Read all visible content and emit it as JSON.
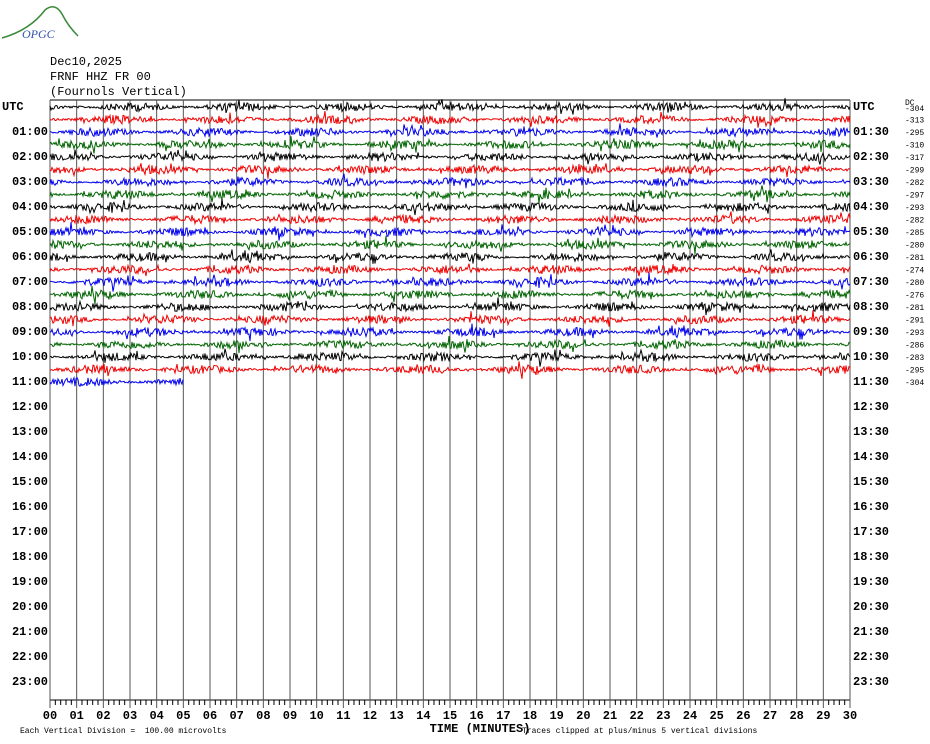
{
  "logo": "OPGC",
  "header": {
    "date": "Dec10,2025",
    "station": "FRNF HHZ FR 00",
    "location": "(Fournols Vertical)"
  },
  "time_labels": {
    "left": [
      "UTC",
      "01:00",
      "02:00",
      "03:00",
      "04:00",
      "05:00",
      "06:00",
      "07:00",
      "08:00",
      "09:00",
      "10:00",
      "11:00",
      "12:00",
      "13:00",
      "14:00",
      "15:00",
      "16:00",
      "17:00",
      "18:00",
      "19:00",
      "20:00",
      "21:00",
      "22:00",
      "23:00"
    ],
    "right": [
      "UTC",
      "01:30",
      "02:30",
      "03:30",
      "04:30",
      "05:30",
      "06:30",
      "07:30",
      "08:30",
      "09:30",
      "10:30",
      "11:30",
      "12:30",
      "13:30",
      "14:30",
      "15:30",
      "16:30",
      "17:30",
      "18:30",
      "19:30",
      "20:30",
      "21:30",
      "22:30",
      "23:30"
    ]
  },
  "offsets": {
    "label": "DC",
    "values": [
      -304,
      -313,
      -295,
      -310,
      -317,
      -299,
      -282,
      -297,
      -293,
      -282,
      -285,
      -280,
      -281,
      -274,
      -280,
      -276,
      -281,
      -291,
      -293,
      -286,
      -283,
      -295,
      -304
    ]
  },
  "x_axis": {
    "label": "TIME (MINUTES)",
    "ticks": [
      "00",
      "01",
      "02",
      "03",
      "04",
      "05",
      "06",
      "07",
      "08",
      "09",
      "10",
      "11",
      "12",
      "13",
      "14",
      "15",
      "16",
      "17",
      "18",
      "19",
      "20",
      "21",
      "22",
      "23",
      "24",
      "25",
      "26",
      "27",
      "28",
      "29",
      "30"
    ]
  },
  "footer": {
    "scale": "Each Vertical Division =  100.00 microvolts",
    "clip": "Traces clipped at plus/minus 5 vertical divisions"
  }
}
